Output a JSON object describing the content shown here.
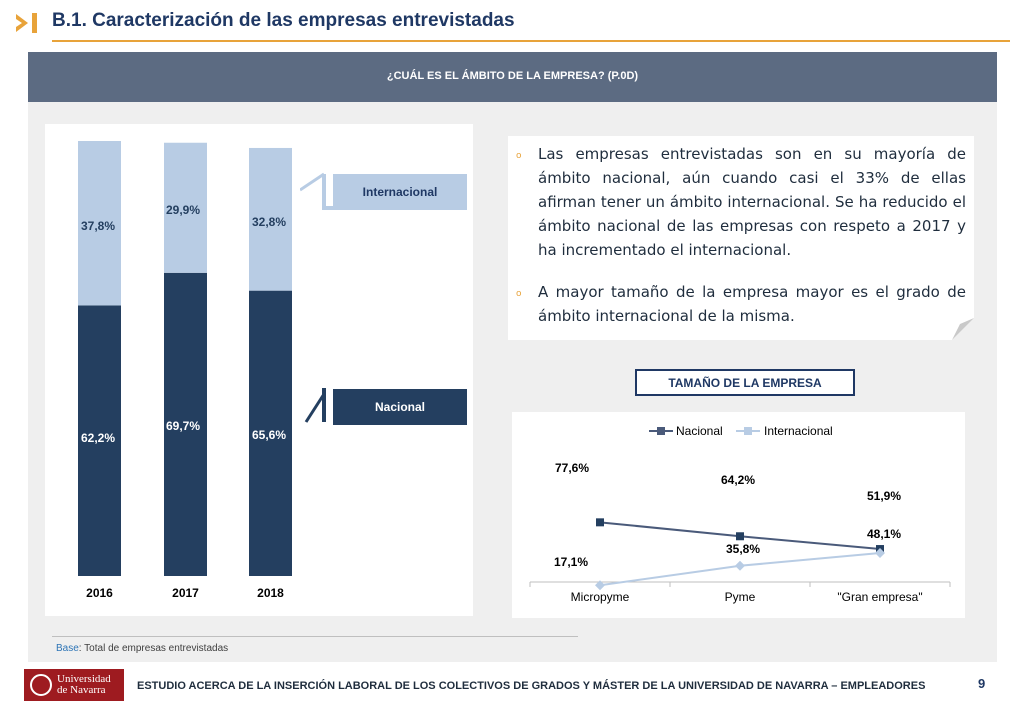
{
  "header": {
    "title": "B.1. Caracterización de las empresas entrevistadas",
    "accent_color": "#e8a33a"
  },
  "banner": {
    "question": "¿CUÁL ES EL ÁMBITO DE LA EMPRESA? (P.0D)"
  },
  "chart_data": [
    {
      "type": "bar",
      "stacked": true,
      "categories": [
        "2016",
        "2017",
        "2018"
      ],
      "series": [
        {
          "name": "Nacional",
          "values": [
            62.2,
            69.7,
            65.6
          ],
          "color": "#243f60"
        },
        {
          "name": "Internacional",
          "values": [
            37.8,
            29.9,
            32.8
          ],
          "color": "#b8cce4"
        }
      ],
      "data_labels": {
        "Nacional": [
          "62,2%",
          "69,7%",
          "65,6%"
        ],
        "Internacional": [
          "37,8%",
          "29,9%",
          "32,8%"
        ]
      },
      "legend_placement": "right"
    },
    {
      "type": "line",
      "categories": [
        "Micropyme",
        "Pyme",
        "\"Gran empresa\""
      ],
      "series": [
        {
          "name": "Nacional",
          "values": [
            77.6,
            64.2,
            51.9
          ],
          "color": "#4a5a7a"
        },
        {
          "name": "Internacional",
          "values": [
            17.1,
            35.8,
            48.1
          ],
          "color": "#b8cce4"
        }
      ],
      "data_labels": {
        "Nacional": [
          "77,6%",
          "64,2%",
          "51,9%"
        ],
        "Internacional": [
          "17,1%",
          "35,8%",
          "48,1%"
        ]
      },
      "ylim": [
        0,
        100
      ],
      "legend_placement": "top"
    }
  ],
  "legend_boxes": {
    "internacional": "Internacional",
    "nacional": "Nacional"
  },
  "text_bullets": [
    "Las empresas entrevistadas son en su mayoría de ámbito nacional, aún cuando casi el 33% de ellas afirman tener un ámbito internacional. Se ha reducido el ámbito nacional de las empresas con respeto a 2017 y ha incrementado el internacional.",
    "A mayor tamaño de la empresa mayor es el grado de ámbito internacional de la  misma."
  ],
  "bullet_marker": "o",
  "size_section_title": "TAMAÑO DE LA EMPRESA",
  "base_note": {
    "key": "Base",
    "text": ": Total de empresas entrevistadas"
  },
  "footer": {
    "university_line1": "Universidad",
    "university_line2": "de Navarra",
    "study_title": "ESTUDIO ACERCA DE LA INSERCIÓN LABORAL DE LOS COLECTIVOS DE GRADOS Y MÁSTER DE LA UNIVERSIDAD DE NAVARRA – EMPLEADORES",
    "page_number": "9"
  }
}
